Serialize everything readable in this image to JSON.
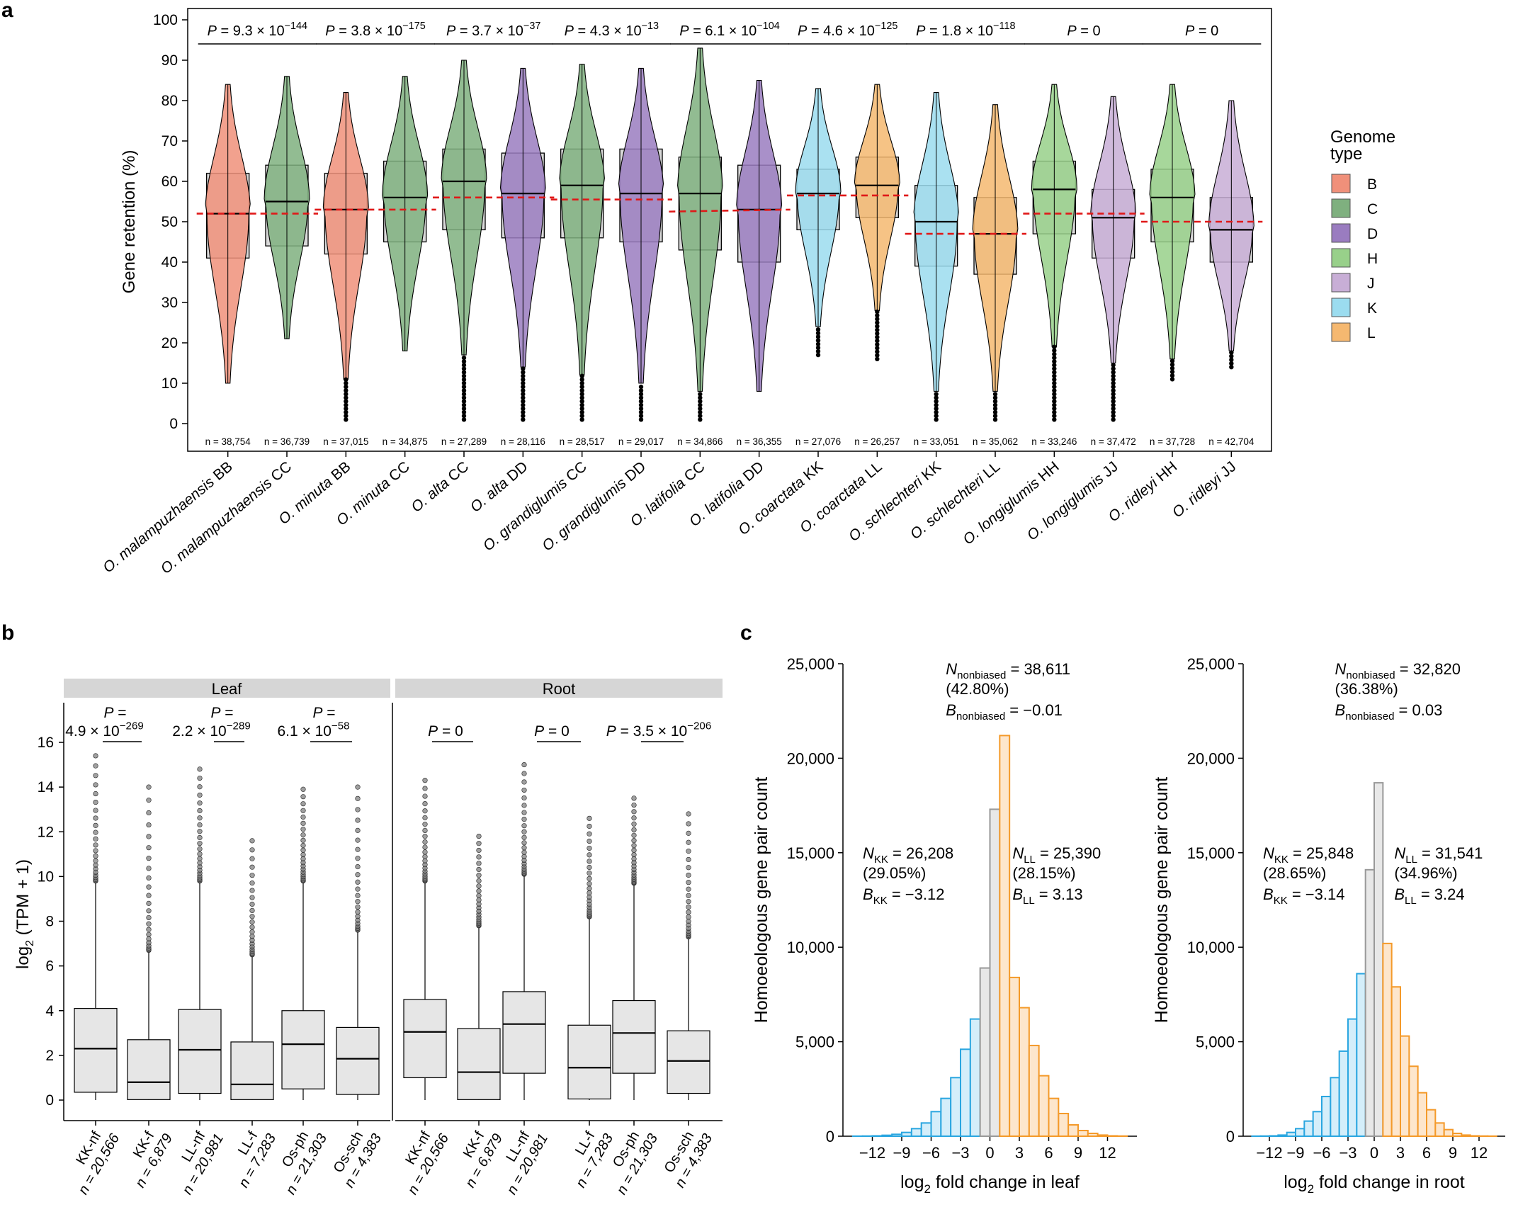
{
  "panel_labels": {
    "a": "a",
    "b": "b",
    "c": "c"
  },
  "colors": {
    "B": "#f0907a",
    "C": "#7fb07f",
    "D": "#9a7cc0",
    "H": "#98d08a",
    "J": "#c8aed6",
    "K": "#9bdcef",
    "L": "#f5b870",
    "box": "#d9d9d9",
    "ref_line": "#e01818",
    "hist_gray": "#d9d9d9",
    "hist_blue": "#2aa6e0",
    "hist_orange": "#f49a2a"
  },
  "chart_data": [
    {
      "type": "violin",
      "ylabel": "Gene retention (%)",
      "ylim": [
        0,
        100
      ],
      "yticks": [
        0,
        10,
        20,
        30,
        40,
        50,
        60,
        70,
        80,
        90,
        100
      ],
      "legend": {
        "title": "Genome type",
        "placement": "right",
        "entries": [
          "B",
          "C",
          "D",
          "H",
          "J",
          "K",
          "L"
        ]
      },
      "groups": [
        {
          "label": "O. malampuzhaensis BB",
          "genome": "B",
          "n": "n = 38,754",
          "q1": 41,
          "median": 52,
          "q3": 62,
          "min": 10,
          "max": 84,
          "mean": 52,
          "outliers_low": null
        },
        {
          "label": "O. malampuzhaensis CC",
          "genome": "C",
          "n": "n = 36,739",
          "q1": 44,
          "median": 55,
          "q3": 64,
          "min": 21,
          "max": 86,
          "mean": 52,
          "outliers_low": null
        },
        {
          "label": "O. minuta BB",
          "genome": "B",
          "n": "n = 37,015",
          "q1": 42,
          "median": 53,
          "q3": 62,
          "min": 11,
          "max": 82,
          "mean": 53,
          "outliers_low": 1
        },
        {
          "label": "O. minuta CC",
          "genome": "C",
          "n": "n = 34,875",
          "q1": 45,
          "median": 56,
          "q3": 65,
          "min": 18,
          "max": 86,
          "mean": 53,
          "outliers_low": null
        },
        {
          "label": "O. alta CC",
          "genome": "C",
          "n": "n = 27,289",
          "q1": 48,
          "median": 60,
          "q3": 68,
          "min": 17,
          "max": 90,
          "mean": 56,
          "outliers_low": 1
        },
        {
          "label": "O. alta DD",
          "genome": "D",
          "n": "n = 28,116",
          "q1": 46,
          "median": 57,
          "q3": 67,
          "min": 14,
          "max": 88,
          "mean": 56,
          "outliers_low": 1
        },
        {
          "label": "O. grandiglumis CC",
          "genome": "C",
          "n": "n = 28,517",
          "q1": 46,
          "median": 59,
          "q3": 68,
          "min": 12,
          "max": 89,
          "mean": 55.5,
          "outliers_low": 1
        },
        {
          "label": "O. grandiglumis DD",
          "genome": "D",
          "n": "n = 29,017",
          "q1": 45,
          "median": 57,
          "q3": 68,
          "min": 10,
          "max": 88,
          "mean": 55.5,
          "outliers_low": 1
        },
        {
          "label": "O. latifolia CC",
          "genome": "C",
          "n": "n = 34,866",
          "q1": 43,
          "median": 57,
          "q3": 66,
          "min": 8,
          "max": 93,
          "mean": 52.5,
          "outliers_low": 1
        },
        {
          "label": "O. latifolia DD",
          "genome": "D",
          "n": "n = 36,355",
          "q1": 40,
          "median": 53,
          "q3": 64,
          "min": 8,
          "max": 85,
          "mean": 53,
          "outliers_low": null
        },
        {
          "label": "O. coarctata KK",
          "genome": "K",
          "n": "n = 27,076",
          "q1": 48,
          "median": 57,
          "q3": 63,
          "min": 24,
          "max": 83,
          "mean": 56.5,
          "outliers_low": 17
        },
        {
          "label": "O. coarctata LL",
          "genome": "L",
          "n": "n = 26,257",
          "q1": 51,
          "median": 59,
          "q3": 66,
          "min": 28,
          "max": 84,
          "mean": 56.5,
          "outliers_low": 16
        },
        {
          "label": "O. schlechteri KK",
          "genome": "K",
          "n": "n = 33,051",
          "q1": 39,
          "median": 50,
          "q3": 59,
          "min": 8,
          "max": 82,
          "mean": 47,
          "outliers_low": 1
        },
        {
          "label": "O. schlechteri LL",
          "genome": "L",
          "n": "n = 35,062",
          "q1": 37,
          "median": 47,
          "q3": 56,
          "min": 8,
          "max": 79,
          "mean": 47,
          "outliers_low": 1
        },
        {
          "label": "O. longiglumis HH",
          "genome": "H",
          "n": "n = 33,246",
          "q1": 47,
          "median": 58,
          "q3": 65,
          "min": 19,
          "max": 84,
          "mean": 52,
          "outliers_low": 1
        },
        {
          "label": "O. longiglumis JJ",
          "genome": "J",
          "n": "n = 37,472",
          "q1": 41,
          "median": 51,
          "q3": 58,
          "min": 15,
          "max": 81,
          "mean": 52,
          "outliers_low": 1
        },
        {
          "label": "O. ridleyi HH",
          "genome": "H",
          "n": "n = 37,728",
          "q1": 45,
          "median": 56,
          "q3": 63,
          "min": 16,
          "max": 84,
          "mean": 50,
          "outliers_low": 11
        },
        {
          "label": "O. ridleyi JJ",
          "genome": "J",
          "n": "n = 42,704",
          "q1": 40,
          "median": 48,
          "q3": 56,
          "min": 18,
          "max": 80,
          "mean": 50,
          "outliers_low": 14
        }
      ],
      "pvalues": [
        {
          "prefix": "P = 9.3 × 10",
          "exp": "−144"
        },
        {
          "prefix": "P = 3.8 × 10",
          "exp": "−175"
        },
        {
          "prefix": "P = 3.7 × 10",
          "exp": "−37"
        },
        {
          "prefix": "P = 4.3 × 10",
          "exp": "−13"
        },
        {
          "prefix": "P = 6.1 × 10",
          "exp": "−104"
        },
        {
          "prefix": "P = 4.6 × 10",
          "exp": "−125"
        },
        {
          "prefix": "P = 1.8 × 10",
          "exp": "−118"
        },
        {
          "prefix": "P = 0",
          "exp": ""
        },
        {
          "prefix": "P = 0",
          "exp": ""
        }
      ]
    },
    {
      "type": "box",
      "ylabel": "log2 (TPM + 1)",
      "ylim": [
        0,
        17
      ],
      "yticks": [
        0,
        2,
        4,
        6,
        8,
        10,
        12,
        14,
        16
      ],
      "facets": [
        "Leaf",
        "Root"
      ],
      "groups": [
        {
          "facet": "Leaf",
          "label": "KK-nf",
          "n": "n = 20,566",
          "q1": 0.35,
          "median": 2.3,
          "q3": 4.1,
          "whisker_high": 9.8,
          "max": 15.4
        },
        {
          "facet": "Leaf",
          "label": "KK-f",
          "n": "n = 6,879",
          "q1": 0.02,
          "median": 0.8,
          "q3": 2.7,
          "whisker_high": 6.7,
          "max": 14.0
        },
        {
          "facet": "Leaf",
          "label": "LL-nf",
          "n": "n = 20,981",
          "q1": 0.3,
          "median": 2.25,
          "q3": 4.05,
          "whisker_high": 9.8,
          "max": 14.8
        },
        {
          "facet": "Leaf",
          "label": "LL-f",
          "n": "n = 7,283",
          "q1": 0.02,
          "median": 0.7,
          "q3": 2.6,
          "whisker_high": 6.5,
          "max": 11.6
        },
        {
          "facet": "Leaf",
          "label": "Os-ph",
          "n": "n = 21,303",
          "q1": 0.5,
          "median": 2.5,
          "q3": 4.0,
          "whisker_high": 9.8,
          "max": 13.9
        },
        {
          "facet": "Leaf",
          "label": "Os-sch",
          "n": "n = 4,383",
          "q1": 0.25,
          "median": 1.85,
          "q3": 3.25,
          "whisker_high": 7.6,
          "max": 14.0
        },
        {
          "facet": "Root",
          "label": "KK-nf",
          "n": "n = 20,566",
          "q1": 1.0,
          "median": 3.05,
          "q3": 4.5,
          "whisker_high": 9.8,
          "max": 14.3
        },
        {
          "facet": "Root",
          "label": "KK-f",
          "n": "n = 6,879",
          "q1": 0.02,
          "median": 1.25,
          "q3": 3.2,
          "whisker_high": 7.8,
          "max": 11.8
        },
        {
          "facet": "Root",
          "label": "LL-nf",
          "n": "n = 20,981",
          "q1": 1.2,
          "median": 3.4,
          "q3": 4.85,
          "whisker_high": 10.1,
          "max": 15.0
        },
        {
          "facet": "Root",
          "label": "LL-f",
          "n": "n = 7,283",
          "q1": 0.05,
          "median": 1.45,
          "q3": 3.35,
          "whisker_high": 8.2,
          "max": 12.6
        },
        {
          "facet": "Root",
          "label": "Os-ph",
          "n": "n = 21,303",
          "q1": 1.2,
          "median": 3.0,
          "q3": 4.45,
          "whisker_high": 9.7,
          "max": 13.5
        },
        {
          "facet": "Root",
          "label": "Os-sch",
          "n": "n = 4,383",
          "q1": 0.3,
          "median": 1.75,
          "q3": 3.1,
          "whisker_high": 7.3,
          "max": 12.8
        }
      ],
      "pvalues": [
        {
          "line1": "P =",
          "line2": "4.9 × 10",
          "exp": "−269"
        },
        {
          "line1": "P =",
          "line2": "2.2 × 10",
          "exp": "−289"
        },
        {
          "line1": "P =",
          "line2": "6.1 × 10",
          "exp": "−58"
        },
        {
          "line1": "P = 0",
          "line2": "",
          "exp": ""
        },
        {
          "line1": "P = 0",
          "line2": "",
          "exp": ""
        },
        {
          "line1": "P = 3.5 × 10",
          "line2": "",
          "exp": "−206"
        }
      ]
    },
    {
      "type": "histogram",
      "title": "",
      "xlabel": "log2 fold change in leaf",
      "ylabel": "Homoeologous gene pair count",
      "ylim": [
        0,
        25000
      ],
      "yticks": [
        0,
        5000,
        10000,
        15000,
        20000,
        25000
      ],
      "ytick_labels": [
        "0",
        "5,000",
        "10,000",
        "15,000",
        "20,000",
        "25,000"
      ],
      "xticks": [
        -12,
        -9,
        -6,
        -3,
        0,
        3,
        6,
        9,
        12
      ],
      "xtick_labels": [
        "−12",
        "−9",
        "−6",
        "−3",
        "0",
        "3",
        "6",
        "9",
        "12"
      ],
      "bin_width": 1,
      "bins_start": -14,
      "counts": [
        5,
        10,
        20,
        50,
        100,
        200,
        400,
        700,
        1300,
        2000,
        3100,
        4600,
        6200,
        8900,
        17300,
        21200,
        8400,
        6800,
        4800,
        3200,
        2000,
        1200,
        600,
        300,
        150,
        60,
        20,
        10
      ],
      "annotations": {
        "nonbiased": {
          "n": "38,611",
          "pct": "(42.80%)",
          "b": "−0.01"
        },
        "KK": {
          "n": "26,208",
          "pct": "(29.05%)",
          "b": "−3.12"
        },
        "LL": {
          "n": "25,390",
          "pct": "(28.15%)",
          "b": "3.13"
        }
      }
    },
    {
      "type": "histogram",
      "title": "",
      "xlabel": "log2 fold change in root",
      "ylabel": "Homoeologous gene pair count",
      "ylim": [
        0,
        25000
      ],
      "yticks": [
        0,
        5000,
        10000,
        15000,
        20000,
        25000
      ],
      "ytick_labels": [
        "0",
        "5,000",
        "10,000",
        "15,000",
        "20,000",
        "25,000"
      ],
      "xticks": [
        -12,
        -9,
        -6,
        -3,
        0,
        3,
        6,
        9,
        12
      ],
      "xtick_labels": [
        "−12",
        "−9",
        "−6",
        "−3",
        "0",
        "3",
        "6",
        "9",
        "12"
      ],
      "bin_width": 1,
      "bins_start": -14,
      "counts": [
        5,
        10,
        20,
        60,
        200,
        400,
        800,
        1300,
        2100,
        3100,
        4500,
        6200,
        8600,
        14100,
        18700,
        10200,
        7900,
        5300,
        3700,
        2300,
        1400,
        700,
        350,
        150,
        60,
        20,
        10,
        5
      ],
      "annotations": {
        "nonbiased": {
          "n": "32,820",
          "pct": "(36.38%)",
          "b": "0.03"
        },
        "KK": {
          "n": "25,848",
          "pct": "(28.65%)",
          "b": "−3.14"
        },
        "LL": {
          "n": "31,541",
          "pct": "(34.96%)",
          "b": "3.24"
        }
      }
    }
  ]
}
